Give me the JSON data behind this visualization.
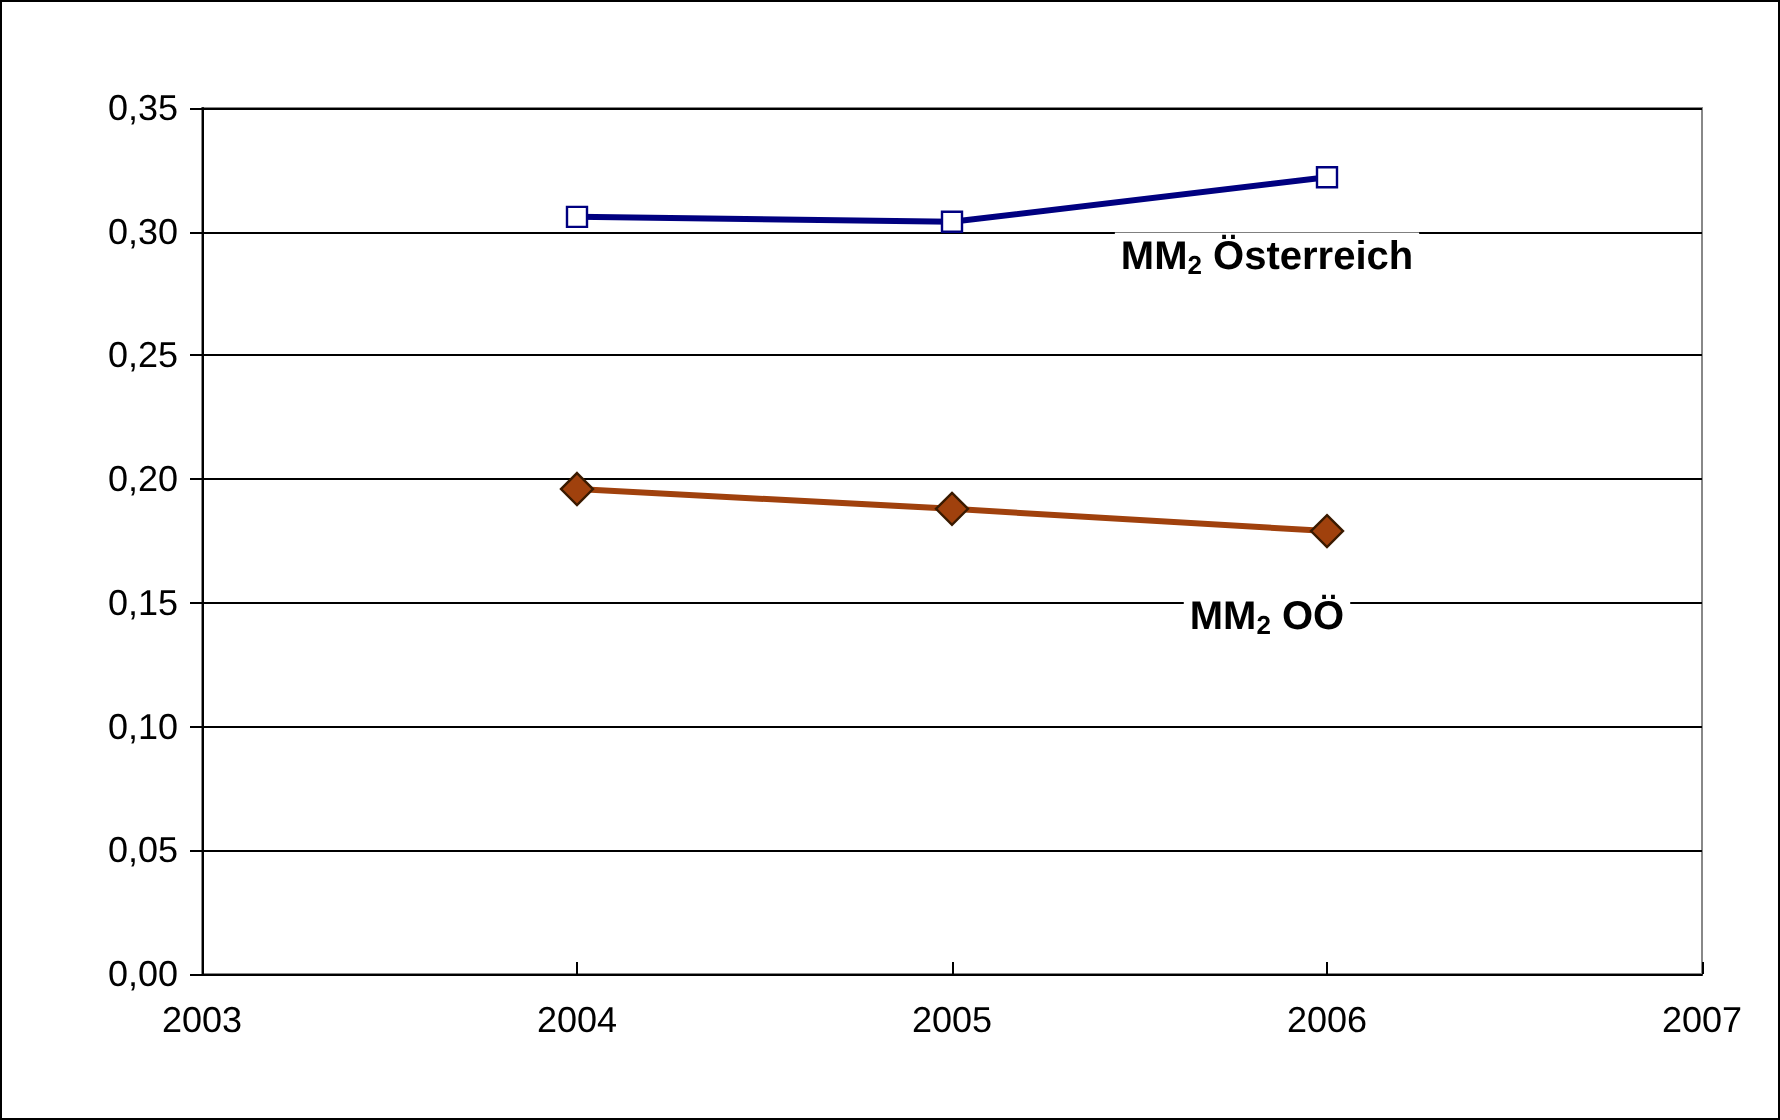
{
  "chart_data": {
    "type": "line",
    "x": [
      2004,
      2005,
      2006
    ],
    "series": [
      {
        "name": "MM$_{2}$ Österreich",
        "color": "#000080",
        "marker": "square",
        "values": [
          0.306,
          0.304,
          0.322
        ]
      },
      {
        "name": "MM$_{2}$ OÖ",
        "color": "#a0410d",
        "marker": "diamond",
        "values": [
          0.196,
          0.188,
          0.179
        ]
      }
    ],
    "xlim": [
      2003,
      2007
    ],
    "xticks": [
      2003,
      2004,
      2005,
      2006,
      2007
    ],
    "ylim": [
      0,
      0.35
    ],
    "yticks": [
      {
        "value": 0,
        "label": "0,00"
      },
      {
        "value": 0.05,
        "label": "0,05"
      },
      {
        "value": 0.1,
        "label": "0,10"
      },
      {
        "value": 0.15,
        "label": "0,15"
      },
      {
        "value": 0.2,
        "label": "0,20"
      },
      {
        "value": 0.25,
        "label": "0,25"
      },
      {
        "value": 0.3,
        "label": "0,30"
      },
      {
        "value": 0.35,
        "label": "0,35"
      }
    ],
    "grid": "y"
  }
}
